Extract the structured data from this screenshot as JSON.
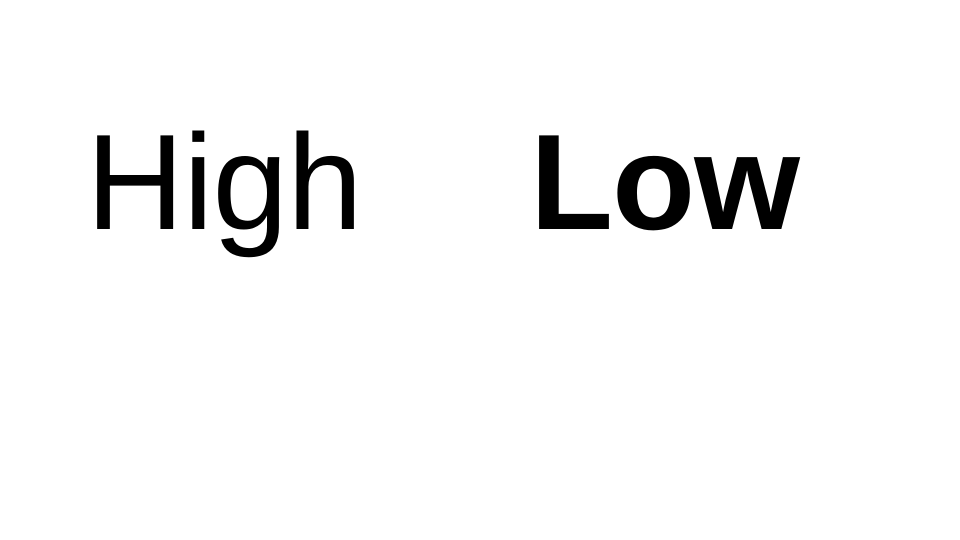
{
  "words": {
    "left": "High",
    "right": "Low"
  },
  "colors": {
    "background": "#ffffff",
    "text": "#000000"
  }
}
